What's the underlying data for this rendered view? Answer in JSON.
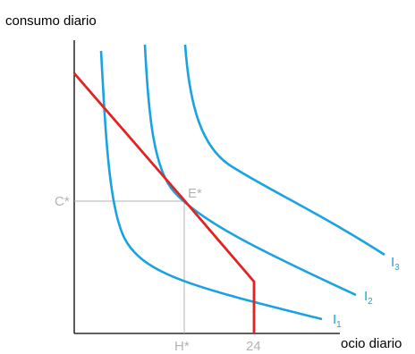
{
  "axes": {
    "y_label": "consumo diario",
    "x_label": "ocio diario"
  },
  "markers": {
    "c_star": "C*",
    "h_star": "H*",
    "e_star": "E*",
    "max_leisure": "24"
  },
  "curves": [
    {
      "label": "I",
      "subscript": "1"
    },
    {
      "label": "I",
      "subscript": "2"
    },
    {
      "label": "I",
      "subscript": "3"
    }
  ],
  "colors": {
    "indifference": "#1aa3e0",
    "budget": "#e02323",
    "axis": "#000000",
    "guide": "#b3b3b3"
  }
}
